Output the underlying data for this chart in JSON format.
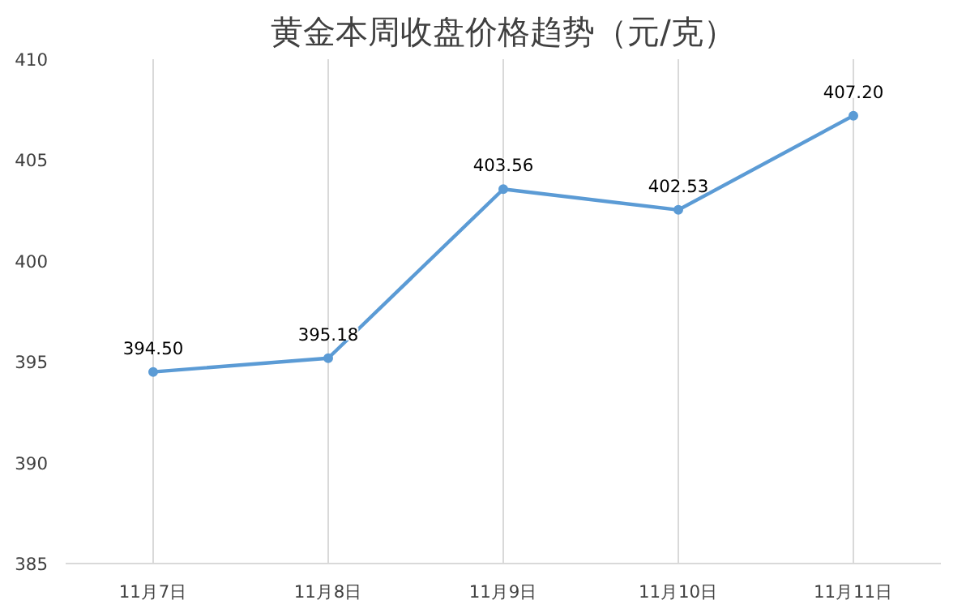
{
  "chart_data": {
    "type": "line",
    "title": "黄金本周收盘价格趋势（元/克）",
    "categories": [
      "11月7日",
      "11月8日",
      "11月9日",
      "11月10日",
      "11月11日"
    ],
    "series": [
      {
        "color": "#5b9bd5",
        "values": [
          394.5,
          395.18,
          403.56,
          402.53,
          407.2
        ]
      }
    ],
    "value_labels": [
      "394.50",
      "395.18",
      "403.56",
      "402.53",
      "407.20"
    ],
    "ylim": [
      385,
      410
    ],
    "yticks": [
      385,
      390,
      395,
      400,
      405,
      410
    ],
    "grid": "x",
    "marker": "circle",
    "line_style": "solid"
  }
}
